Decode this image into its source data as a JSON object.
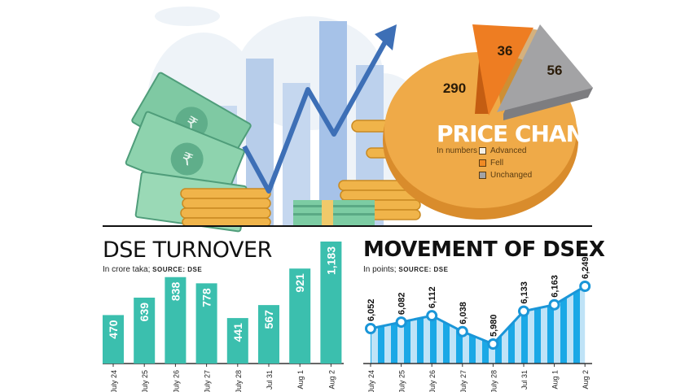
{
  "price_change": {
    "title": "PRICE CHANGE",
    "unit": "In numbers",
    "legend": [
      {
        "label": "Advanced",
        "color": "#f3efe6"
      },
      {
        "label": "Fell",
        "color": "#f08a24"
      },
      {
        "label": "Unchanged",
        "color": "#a3a3a5"
      }
    ]
  },
  "turnover": {
    "title": "DSE TURNOVER",
    "subtitle": "In crore taka; ",
    "source": "SOURCE: DSE"
  },
  "dsex": {
    "title": "MOVEMENT OF DSEX",
    "subtitle": "In points; ",
    "source": "SOURCE: DSE"
  },
  "chart_data": [
    {
      "type": "pie",
      "title": "PRICE CHANGE",
      "categories": [
        "Advanced",
        "Fell",
        "Unchanged"
      ],
      "values": [
        290,
        36,
        56
      ],
      "colors": [
        "#efaa48",
        "#ee7d22",
        "#a3a3a5"
      ]
    },
    {
      "type": "bar",
      "title": "DSE TURNOVER",
      "categories": [
        "July 24",
        "July 25",
        "July 26",
        "July 27",
        "July 28",
        "Jul 31",
        "Aug 1",
        "Aug 2"
      ],
      "values": [
        470,
        639,
        838,
        778,
        441,
        567,
        921,
        1183
      ],
      "labels": [
        "470",
        "639",
        "838",
        "778",
        "441",
        "567",
        "921",
        "1,183"
      ],
      "color": "#3bbfae",
      "ylim": [
        0,
        1183
      ]
    },
    {
      "type": "area",
      "title": "MOVEMENT OF DSEX",
      "categories": [
        "July 24",
        "July 25",
        "July 26",
        "July 27",
        "July 28",
        "Jul 31",
        "Aug 1",
        "Aug 2"
      ],
      "values": [
        6052,
        6082,
        6112,
        6038,
        5980,
        6133,
        6163,
        6249
      ],
      "labels": [
        "6,052",
        "6,082",
        "6,112",
        "6,038",
        "5,980",
        "6,133",
        "6,163",
        "6,249"
      ],
      "color": "#1aa8e6",
      "ylim": [
        5900,
        6249
      ]
    }
  ]
}
